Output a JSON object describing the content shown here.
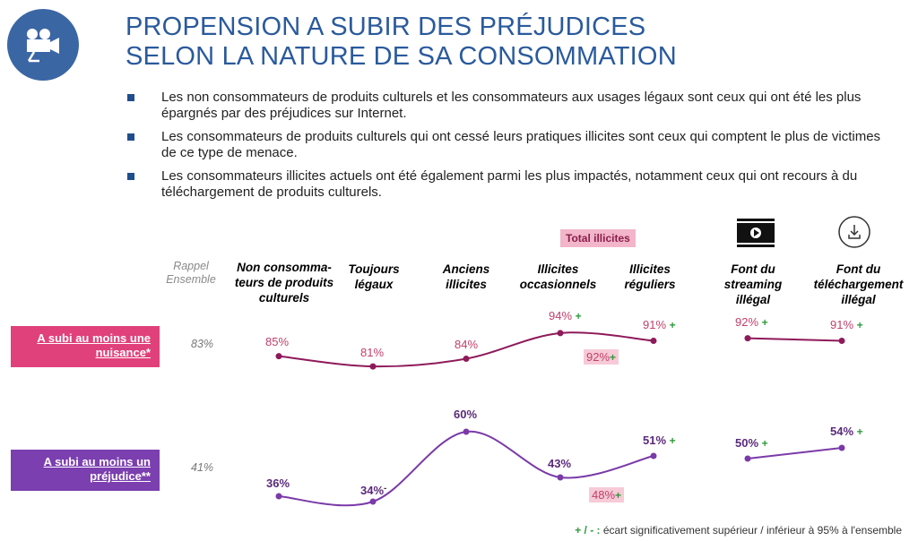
{
  "header": {
    "title_line1": "PROPENSION A SUBIR DES PRÉJUDICES",
    "title_line2": "SELON LA NATURE DE SA CONSOMMATION",
    "logo_icon": "movie-camera-icon"
  },
  "bullets": [
    "Les non consommateurs de produits culturels et les consommateurs aux usages légaux sont ceux qui ont été les plus épargnés par des préjudices sur Internet.",
    "Les consommateurs de produits culturels qui ont cessé leurs pratiques illicites sont ceux qui comptent le plus de victimes de ce type de menace.",
    "Les consommateurs illicites actuels ont été également parmi les plus impactés, notamment ceux qui ont recours à du téléchargement de produits culturels."
  ],
  "colors": {
    "title": "#2a5a9c",
    "nuisance": "#8e1a5a",
    "prejudice": "#7a3aa8",
    "nuisance_label_bg": "#e0417a",
    "prejudice_label_bg": "#7b3fb0",
    "plus": "#2f9a3c"
  },
  "chart_data": {
    "type": "line",
    "title": "PROPENSION A SUBIR DES PRÉJUDICES SELON LA NATURE DE SA CONSOMMATION",
    "rappel_label": "Rappel Ensemble",
    "total_illicites_label": "Total illicites",
    "categories": [
      {
        "label": "Non consomma-teurs de produits culturels",
        "color": "#1f3a5f"
      },
      {
        "label": "Toujours légaux",
        "color": "#a4a13a"
      },
      {
        "label": "Anciens illicites",
        "color": "#e8a62a"
      },
      {
        "label": "Illicites occasionnels",
        "color": "#d64d7e"
      },
      {
        "label": "Illicites réguliers",
        "color": "#7a1f3e"
      },
      {
        "label": "Font du streaming illégal",
        "color": "#8a8a8a"
      },
      {
        "label": "Font du téléchargement illégal",
        "color": "#8a8a8a"
      }
    ],
    "category_icons": [
      "streaming-icon",
      "download-icon"
    ],
    "series": [
      {
        "name": "A subi au moins une nuisance*",
        "ensemble": "83%",
        "values": [
          85,
          81,
          84,
          94,
          91,
          92,
          91
        ],
        "value_labels": [
          "85%",
          "81%",
          "84%",
          "94%",
          "91%",
          "92%",
          "91%"
        ],
        "sig": [
          "",
          "",
          "",
          "+",
          "+",
          "+",
          "+"
        ],
        "total_illicites": "92%",
        "total_sig": "+"
      },
      {
        "name": "A subi au moins un préjudice**",
        "ensemble": "41%",
        "values": [
          36,
          34,
          60,
          43,
          51,
          50,
          54
        ],
        "value_labels": [
          "36%",
          "34%",
          "60%",
          "43%",
          "51%",
          "50%",
          "54%"
        ],
        "sig": [
          "",
          "-",
          "",
          "",
          "+",
          "+",
          "+"
        ],
        "total_illicites": "48%",
        "total_sig": "+"
      }
    ],
    "footnote_sig": "+ / - :",
    "footnote_text": "écart significativement supérieur / inférieur à 95% à l'ensemble"
  }
}
